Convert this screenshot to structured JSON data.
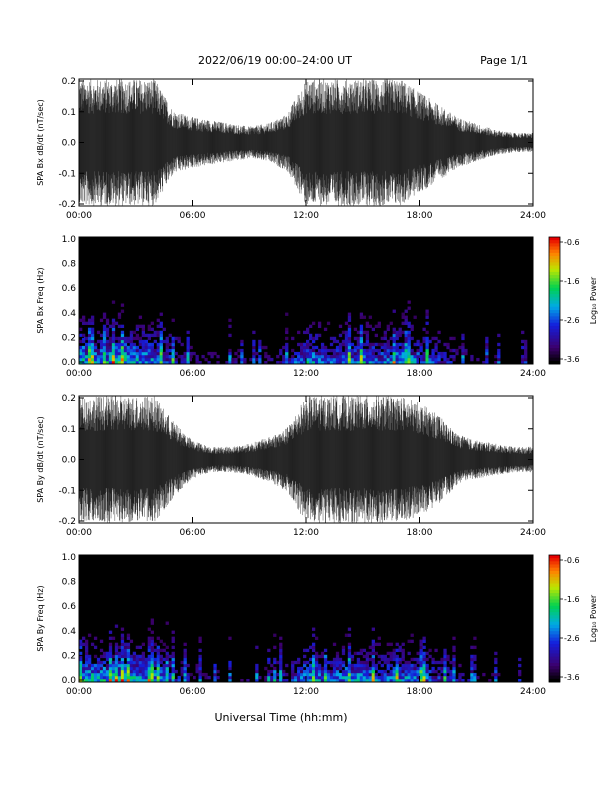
{
  "header": {
    "title": "2022/06/19  00:00–24:00 UT",
    "page": "Page 1/1"
  },
  "footer": {
    "xlabel": "Universal Time (hh:mm)"
  },
  "chart_data": [
    {
      "type": "line",
      "ylabel": "SPA Bx dB/dt (nT/sec)",
      "xlim": [
        0,
        24
      ],
      "ylim": [
        -0.2,
        0.2
      ],
      "x_ticks": [
        "00:00",
        "06:00",
        "12:00",
        "18:00",
        "24:00"
      ],
      "y_ticks": [
        "0.2",
        "0.1",
        "0.0",
        "-0.1",
        "-0.2"
      ],
      "series": [
        {
          "x": [
            0,
            1,
            2,
            2.5,
            3,
            4,
            5,
            6,
            7,
            8,
            9,
            10,
            11,
            12,
            13,
            14,
            15,
            16,
            17,
            18,
            19,
            20,
            21,
            22,
            23,
            24
          ],
          "amplitude": [
            0.2,
            0.2,
            0.2,
            0.2,
            0.2,
            0.2,
            0.1,
            0.08,
            0.07,
            0.06,
            0.05,
            0.06,
            0.09,
            0.2,
            0.2,
            0.2,
            0.2,
            0.2,
            0.2,
            0.16,
            0.12,
            0.08,
            0.06,
            0.04,
            0.03,
            0.03
          ]
        }
      ]
    },
    {
      "type": "heatmap",
      "ylabel": "SPA Bx Freq (Hz)",
      "colorbar_label": "Log₁₀ Power",
      "colorbar_ticks": [
        "-0.6",
        "-1.6",
        "-2.6",
        "-3.6"
      ],
      "colorbar_range": [
        -3.6,
        -0.6
      ],
      "xlim": [
        0,
        24
      ],
      "ylim": [
        0,
        1.0
      ],
      "x_ticks": [
        "00:00",
        "06:00",
        "12:00",
        "18:00",
        "24:00"
      ],
      "y_ticks": [
        "1.0",
        "0.8",
        "0.6",
        "0.4",
        "0.2",
        "0.0"
      ],
      "activity_by_hour": [
        0.8,
        0.7,
        0.8,
        0.75,
        0.7,
        0.5,
        0.35,
        0.3,
        0.3,
        0.3,
        0.35,
        0.45,
        0.75,
        0.6,
        0.65,
        0.7,
        0.6,
        0.7,
        0.65,
        0.5,
        0.4,
        0.3,
        0.25,
        0.2,
        0.2
      ]
    },
    {
      "type": "line",
      "ylabel": "SPA By dB/dt (nT/sec)",
      "xlim": [
        0,
        24
      ],
      "ylim": [
        -0.2,
        0.2
      ],
      "x_ticks": [
        "00:00",
        "06:00",
        "12:00",
        "18:00",
        "24:00"
      ],
      "y_ticks": [
        "0.2",
        "0.1",
        "0.0",
        "-0.1",
        "-0.2"
      ],
      "series": [
        {
          "x": [
            0,
            1,
            2,
            2.5,
            3,
            4,
            5,
            6,
            7,
            8,
            9,
            10,
            11,
            12,
            13,
            14,
            15,
            16,
            17,
            18,
            19,
            20,
            21,
            22,
            23,
            24
          ],
          "amplitude": [
            0.2,
            0.2,
            0.2,
            0.2,
            0.2,
            0.2,
            0.12,
            0.06,
            0.04,
            0.04,
            0.05,
            0.07,
            0.1,
            0.2,
            0.2,
            0.2,
            0.2,
            0.2,
            0.2,
            0.18,
            0.14,
            0.08,
            0.06,
            0.05,
            0.04,
            0.04
          ]
        }
      ]
    },
    {
      "type": "heatmap",
      "ylabel": "SPA By Freq (Hz)",
      "colorbar_label": "Log₁₀ Power",
      "colorbar_ticks": [
        "-0.6",
        "-1.6",
        "-2.6",
        "-3.6"
      ],
      "colorbar_range": [
        -3.6,
        -0.6
      ],
      "xlim": [
        0,
        24
      ],
      "ylim": [
        0,
        1.0
      ],
      "x_ticks": [
        "00:00",
        "06:00",
        "12:00",
        "18:00",
        "24:00"
      ],
      "y_ticks": [
        "1.0",
        "0.8",
        "0.6",
        "0.4",
        "0.2",
        "0.0"
      ],
      "activity_by_hour": [
        0.8,
        0.75,
        0.8,
        0.75,
        0.7,
        0.5,
        0.35,
        0.3,
        0.3,
        0.3,
        0.35,
        0.45,
        0.75,
        0.6,
        0.7,
        0.7,
        0.6,
        0.7,
        0.65,
        0.5,
        0.4,
        0.3,
        0.25,
        0.2,
        0.2
      ]
    }
  ]
}
